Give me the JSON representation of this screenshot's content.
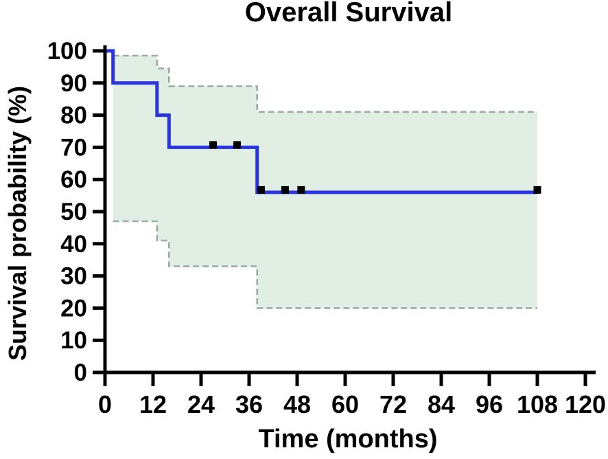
{
  "chart_data": {
    "type": "line",
    "subtype": "kaplan-meier-step-curve",
    "title": "Overall Survival",
    "xlabel": "Time (months)",
    "ylabel": "Survival probability (%)",
    "xlim": [
      0,
      120
    ],
    "ylim": [
      0,
      100
    ],
    "xticks": [
      0,
      12,
      24,
      36,
      48,
      60,
      72,
      84,
      96,
      108,
      120
    ],
    "yticks": [
      0,
      10,
      20,
      30,
      40,
      50,
      60,
      70,
      80,
      90,
      100
    ],
    "grid": false,
    "legend": "none",
    "axis_color": "#000000",
    "series": [
      {
        "name": "Overall survival",
        "color": "#2a34e0",
        "points": [
          {
            "x": 0,
            "y": 100
          },
          {
            "x": 2,
            "y": 100
          },
          {
            "x": 2,
            "y": 90
          },
          {
            "x": 13,
            "y": 90
          },
          {
            "x": 13,
            "y": 80
          },
          {
            "x": 16,
            "y": 80
          },
          {
            "x": 16,
            "y": 70
          },
          {
            "x": 38,
            "y": 70
          },
          {
            "x": 38,
            "y": 56
          },
          {
            "x": 108,
            "y": 56
          }
        ]
      }
    ],
    "confidence_band": {
      "fill": "#e0eee4",
      "stroke": "#97ada6",
      "upper": [
        {
          "x": 2,
          "y": 98.5
        },
        {
          "x": 13,
          "y": 98.5
        },
        {
          "x": 13,
          "y": 94.5
        },
        {
          "x": 16,
          "y": 94.5
        },
        {
          "x": 16,
          "y": 89
        },
        {
          "x": 38,
          "y": 89
        },
        {
          "x": 38,
          "y": 81
        },
        {
          "x": 108,
          "y": 81
        }
      ],
      "lower": [
        {
          "x": 2,
          "y": 47
        },
        {
          "x": 13,
          "y": 47
        },
        {
          "x": 13,
          "y": 41
        },
        {
          "x": 16,
          "y": 41
        },
        {
          "x": 16,
          "y": 33
        },
        {
          "x": 38,
          "y": 33
        },
        {
          "x": 38,
          "y": 20
        },
        {
          "x": 108,
          "y": 20
        }
      ]
    },
    "censor_marks": {
      "color": "#000000",
      "points": [
        {
          "x": 27,
          "y": 70
        },
        {
          "x": 33,
          "y": 70
        },
        {
          "x": 39,
          "y": 56
        },
        {
          "x": 45,
          "y": 56
        },
        {
          "x": 49,
          "y": 56
        },
        {
          "x": 108,
          "y": 56
        }
      ]
    }
  }
}
